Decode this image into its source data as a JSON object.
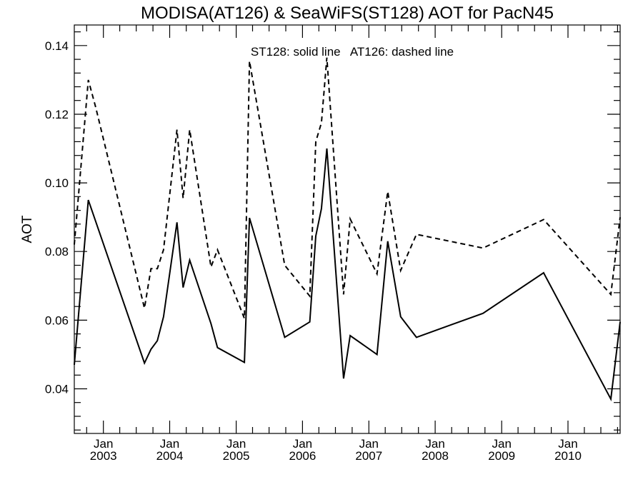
{
  "chart_data": {
    "type": "line",
    "title": "MODISA(AT126) & SeaWiFS(ST128)  AOT for PacN45",
    "annotation": "ST128: solid line   AT126: dashed line",
    "xlabel": "",
    "ylabel": "AOT",
    "xlim": [
      "2002-07-25",
      "2010-10-15"
    ],
    "ylim": [
      0.027,
      0.146
    ],
    "y_ticks": [
      0.04,
      0.06,
      0.08,
      0.1,
      0.12,
      0.14
    ],
    "y_tick_labels": [
      "0.04",
      "0.06",
      "0.08",
      "0.10",
      "0.12",
      "0.14"
    ],
    "x_ticks": [
      {
        "date": "2003-01-01",
        "month": "Jan",
        "year": "2003"
      },
      {
        "date": "2004-01-01",
        "month": "Jan",
        "year": "2004"
      },
      {
        "date": "2005-01-01",
        "month": "Jan",
        "year": "2005"
      },
      {
        "date": "2006-01-01",
        "month": "Jan",
        "year": "2006"
      },
      {
        "date": "2007-01-01",
        "month": "Jan",
        "year": "2007"
      },
      {
        "date": "2008-01-01",
        "month": "Jan",
        "year": "2008"
      },
      {
        "date": "2009-01-01",
        "month": "Jan",
        "year": "2009"
      },
      {
        "date": "2010-01-01",
        "month": "Jan",
        "year": "2010"
      }
    ],
    "grid": false,
    "series": [
      {
        "name": "ST128",
        "style": "solid",
        "color": "#000000",
        "points": [
          [
            "2002-07-25",
            0.047
          ],
          [
            "2002-10-10",
            0.095
          ],
          [
            "2003-08-15",
            0.0475
          ],
          [
            "2003-09-20",
            0.0515
          ],
          [
            "2003-10-25",
            0.054
          ],
          [
            "2003-11-28",
            0.061
          ],
          [
            "2004-02-10",
            0.0885
          ],
          [
            "2004-03-15",
            0.0695
          ],
          [
            "2004-04-20",
            0.0775
          ],
          [
            "2004-08-15",
            0.059
          ],
          [
            "2004-09-20",
            0.052
          ],
          [
            "2005-02-15",
            0.0477
          ],
          [
            "2005-03-15",
            0.0898
          ],
          [
            "2005-09-25",
            0.055
          ],
          [
            "2006-02-10",
            0.0595
          ],
          [
            "2006-03-15",
            0.0845
          ],
          [
            "2006-04-15",
            0.0925
          ],
          [
            "2006-05-15",
            0.11
          ],
          [
            "2006-08-15",
            0.043
          ],
          [
            "2006-09-20",
            0.0555
          ],
          [
            "2007-02-15",
            0.05
          ],
          [
            "2007-04-15",
            0.083
          ],
          [
            "2007-06-25",
            0.061
          ],
          [
            "2007-09-20",
            0.055
          ],
          [
            "2008-09-20",
            0.062
          ],
          [
            "2009-08-20",
            0.0738
          ],
          [
            "2010-08-25",
            0.037
          ],
          [
            "2010-10-15",
            0.0595
          ]
        ]
      },
      {
        "name": "AT126",
        "style": "dashed",
        "color": "#000000",
        "points": [
          [
            "2002-07-25",
            0.082
          ],
          [
            "2002-10-10",
            0.13
          ],
          [
            "2002-11-20",
            0.122
          ],
          [
            "2003-08-15",
            0.0635
          ],
          [
            "2003-09-20",
            0.075
          ],
          [
            "2003-10-25",
            0.075
          ],
          [
            "2003-11-28",
            0.0805
          ],
          [
            "2004-02-10",
            0.1155
          ],
          [
            "2004-03-15",
            0.0955
          ],
          [
            "2004-04-20",
            0.1155
          ],
          [
            "2004-08-15",
            0.0755
          ],
          [
            "2004-09-20",
            0.0805
          ],
          [
            "2005-02-15",
            0.0605
          ],
          [
            "2005-03-15",
            0.1355
          ],
          [
            "2005-09-25",
            0.076
          ],
          [
            "2006-02-10",
            0.067
          ],
          [
            "2006-03-15",
            0.112
          ],
          [
            "2006-04-15",
            0.1175
          ],
          [
            "2006-05-15",
            0.1365
          ],
          [
            "2006-08-15",
            0.0675
          ],
          [
            "2006-09-20",
            0.0895
          ],
          [
            "2007-02-15",
            0.0735
          ],
          [
            "2007-04-15",
            0.0975
          ],
          [
            "2007-06-25",
            0.0745
          ],
          [
            "2007-09-20",
            0.085
          ],
          [
            "2008-09-20",
            0.081
          ],
          [
            "2009-08-20",
            0.0893
          ],
          [
            "2010-08-25",
            0.0675
          ],
          [
            "2010-10-15",
            0.09
          ]
        ]
      }
    ]
  }
}
